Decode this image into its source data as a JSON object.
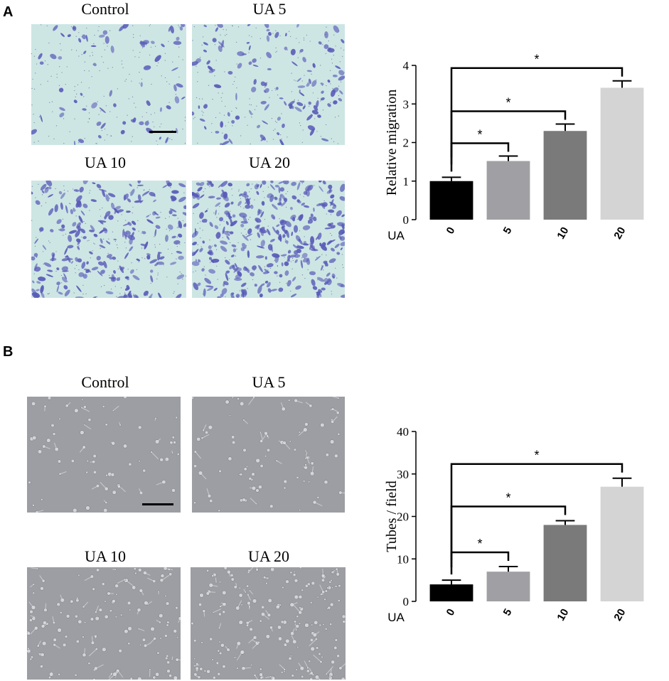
{
  "panels": [
    {
      "letter": "A",
      "image_labels": [
        "Control",
        "UA 5",
        "UA 10",
        "UA 20"
      ],
      "stain": "crystal-violet",
      "colors": {
        "background": "#cde6e4",
        "cells": "#5a5ab8"
      }
    },
    {
      "letter": "B",
      "image_labels": [
        "Control",
        "UA 5",
        "UA 10",
        "UA 20"
      ],
      "stain": "phase-contrast",
      "colors": {
        "background": "#9c9ea3",
        "cells": "#dcdde0"
      }
    }
  ],
  "chart_data": [
    {
      "type": "bar",
      "title": "",
      "xlabel": "",
      "x_prefix": "UA",
      "ylabel": "Relative migration",
      "categories": [
        "0",
        "5",
        "10",
        "20"
      ],
      "values": [
        1.0,
        1.52,
        2.3,
        3.42
      ],
      "errors": [
        0.1,
        0.13,
        0.18,
        0.18
      ],
      "ylim": [
        0,
        4
      ],
      "yticks": [
        "0",
        "1",
        "2",
        "3",
        "4"
      ],
      "bar_colors": [
        "#000000",
        "#a0a0a4",
        "#7a7a7a",
        "#d4d4d4"
      ],
      "significance": [
        {
          "from": "0",
          "to": "5",
          "label": "*"
        },
        {
          "from": "0",
          "to": "10",
          "label": "*"
        },
        {
          "from": "0",
          "to": "20",
          "label": "*"
        }
      ],
      "grid": false
    },
    {
      "type": "bar",
      "title": "",
      "xlabel": "",
      "x_prefix": "UA",
      "ylabel": "Tubes / field",
      "categories": [
        "0",
        "5",
        "10",
        "20"
      ],
      "values": [
        4,
        7,
        18,
        27
      ],
      "errors": [
        1.0,
        1.2,
        1.0,
        2.0
      ],
      "ylim": [
        0,
        40
      ],
      "yticks": [
        "0",
        "10",
        "20",
        "30",
        "40"
      ],
      "bar_colors": [
        "#000000",
        "#a0a0a4",
        "#7a7a7a",
        "#d4d4d4"
      ],
      "significance": [
        {
          "from": "0",
          "to": "5",
          "label": "*"
        },
        {
          "from": "0",
          "to": "10",
          "label": "*"
        },
        {
          "from": "0",
          "to": "20",
          "label": "*"
        }
      ],
      "grid": false
    }
  ]
}
